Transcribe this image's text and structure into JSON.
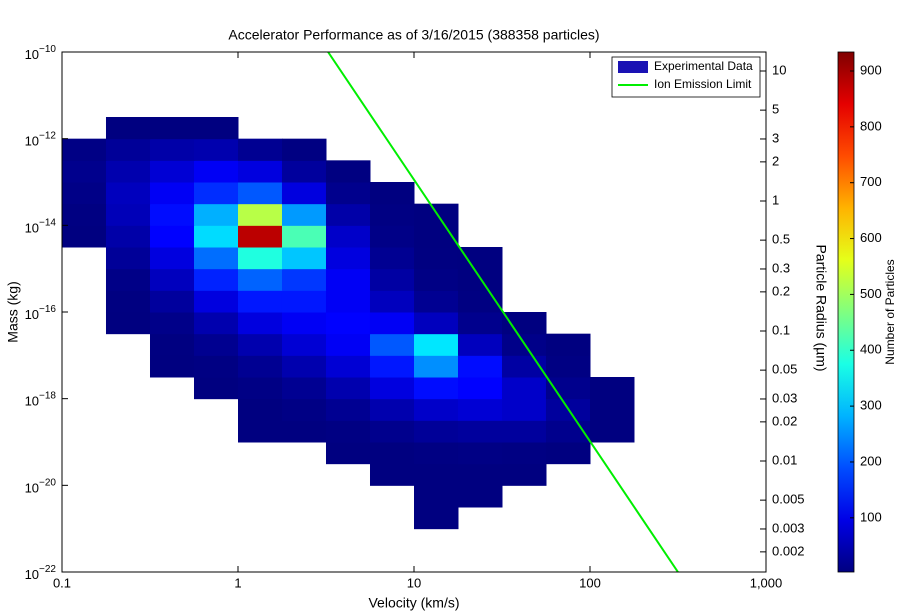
{
  "chart_data": {
    "type": "heatmap",
    "title": "Accelerator Performance as of 3/16/2015 (388358 particles)",
    "x_label": "Velocity (km/s)",
    "y_label": "Mass (kg)",
    "y2_label": "Particle Radius (µm)",
    "colorbar_label": "Number of Particles",
    "xscale": "log",
    "yscale": "log",
    "y2scale": "log",
    "xlim": [
      0.1,
      1000
    ],
    "ylim": [
      1e-22,
      1e-10
    ],
    "y2lim": [
      0.0014,
      14.0
    ],
    "xticks": [
      0.1,
      1,
      10,
      100,
      {
        "value": 1000,
        "label": "1,000"
      }
    ],
    "yticks": [
      {
        "value": 1e-22,
        "label": "10^-22"
      },
      {
        "value": 1e-20,
        "label": "10^-20"
      },
      {
        "value": 1e-18,
        "label": "10^-18"
      },
      {
        "value": 1e-16,
        "label": "10^-16"
      },
      {
        "value": 1e-14,
        "label": "10^-14"
      },
      {
        "value": 1e-12,
        "label": "10^-12"
      },
      {
        "value": 1e-10,
        "label": "10^-10"
      }
    ],
    "y2ticks": [
      10,
      5,
      3,
      2,
      1,
      0.5,
      0.3,
      0.2,
      0.1,
      0.05,
      0.03,
      0.02,
      0.01,
      0.005,
      0.003,
      0.002
    ],
    "colormap": "jet",
    "clim": [
      3,
      934
    ],
    "cticks": [
      100,
      200,
      300,
      400,
      500,
      600,
      700,
      800,
      900
    ],
    "legend": "top-right",
    "series": [
      {
        "name": "Experimental Data",
        "type": "heatmap",
        "color": "#1a12b4",
        "x_bins": [
          0.1,
          0.1778,
          0.3162,
          0.5623,
          1,
          1.778,
          3.162,
          5.623,
          10,
          17.78,
          31.62,
          56.23,
          100,
          177.8
        ],
        "y_bins": [
          1e-21,
          3.162e-21,
          1e-20,
          3.162e-20,
          1e-19,
          3.162e-19,
          1e-18,
          3.162e-18,
          1e-17,
          3.162e-17,
          1e-16,
          3.162e-16,
          1e-15,
          3.162e-15,
          1e-14,
          3.162e-14,
          1e-13,
          3.162e-13,
          1e-12,
          3.162e-12
        ],
        "z": [
          [
            null,
            null,
            null,
            null,
            null,
            null,
            null,
            null,
            1,
            null,
            null,
            null,
            null
          ],
          [
            null,
            null,
            null,
            null,
            null,
            null,
            null,
            null,
            1,
            1,
            null,
            null,
            null
          ],
          [
            null,
            null,
            null,
            null,
            null,
            null,
            null,
            1,
            2,
            2,
            1,
            null,
            null
          ],
          [
            null,
            null,
            null,
            null,
            null,
            null,
            1,
            3,
            6,
            8,
            6,
            3,
            null
          ],
          [
            null,
            null,
            null,
            null,
            1,
            2,
            6,
            15,
            25,
            30,
            30,
            15,
            2
          ],
          [
            null,
            null,
            null,
            null,
            3,
            8,
            20,
            45,
            70,
            80,
            70,
            30,
            3
          ],
          [
            null,
            null,
            null,
            2,
            8,
            20,
            45,
            90,
            130,
            120,
            70,
            15,
            1
          ],
          [
            null,
            null,
            1,
            6,
            20,
            45,
            80,
            140,
            250,
            130,
            35,
            6,
            null
          ],
          [
            null,
            null,
            4,
            18,
            45,
            80,
            110,
            200,
            330,
            60,
            12,
            2,
            null
          ],
          [
            null,
            1,
            12,
            45,
            90,
            110,
            120,
            110,
            60,
            15,
            3,
            null,
            null
          ],
          [
            null,
            4,
            30,
            90,
            140,
            140,
            110,
            60,
            20,
            5,
            null,
            null,
            null
          ],
          [
            null,
            10,
            60,
            150,
            210,
            170,
            110,
            35,
            8,
            2,
            null,
            null,
            null
          ],
          [
            null,
            25,
            90,
            220,
            380,
            300,
            90,
            20,
            4,
            1,
            null,
            null,
            null
          ],
          [
            2,
            40,
            120,
            320,
            880,
            420,
            70,
            10,
            2,
            null,
            null,
            null,
            null
          ],
          [
            5,
            55,
            130,
            280,
            520,
            260,
            40,
            6,
            1,
            null,
            null,
            null,
            null
          ],
          [
            10,
            60,
            110,
            160,
            200,
            90,
            15,
            2,
            null,
            null,
            null,
            null,
            null
          ],
          [
            15,
            45,
            80,
            110,
            90,
            30,
            4,
            null,
            null,
            null,
            null,
            null,
            null
          ],
          [
            8,
            25,
            40,
            45,
            20,
            5,
            null,
            null,
            null,
            null,
            null,
            null,
            null
          ],
          [
            null,
            2,
            3,
            2,
            null,
            null,
            null,
            null,
            null,
            null,
            null,
            null,
            null
          ]
        ]
      },
      {
        "name": "Ion Emission Limit",
        "type": "line",
        "color": "#00ee00",
        "x": [
          3.25,
          316
        ],
        "y": [
          1e-10,
          1e-22
        ]
      }
    ]
  }
}
